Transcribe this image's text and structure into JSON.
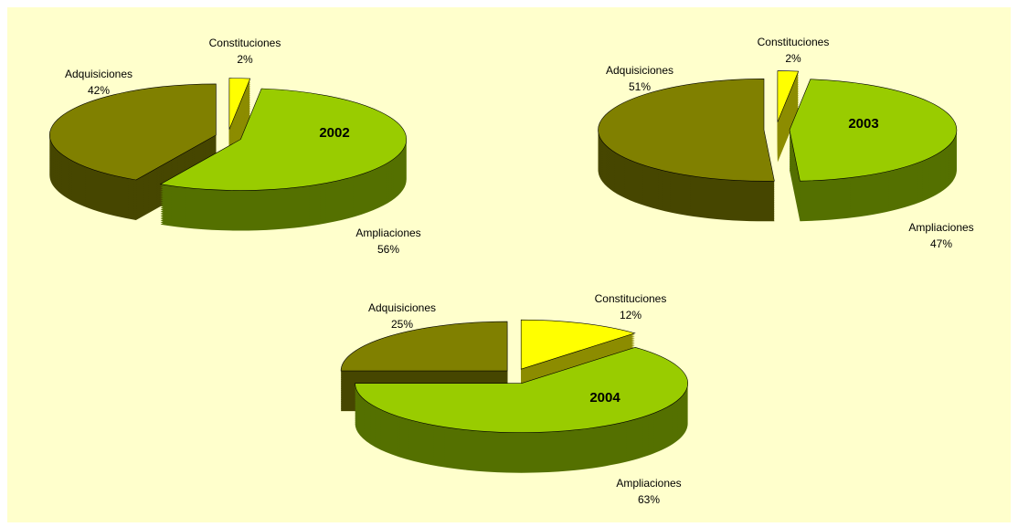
{
  "chart_data": [
    {
      "type": "pie",
      "title": "2002",
      "categories": [
        "Constituciones",
        "Ampliaciones",
        "Adquisiciones"
      ],
      "values": [
        2,
        56,
        42
      ],
      "value_labels": [
        "2%",
        "56%",
        "42%"
      ],
      "colors": [
        "#ffff00",
        "#99cc00",
        "#808000"
      ]
    },
    {
      "type": "pie",
      "title": "2003",
      "categories": [
        "Constituciones",
        "Ampliaciones",
        "Adquisiciones"
      ],
      "values": [
        2,
        47,
        51
      ],
      "value_labels": [
        "2%",
        "47%",
        "51%"
      ],
      "colors": [
        "#ffff00",
        "#99cc00",
        "#808000"
      ]
    },
    {
      "type": "pie",
      "title": "2004",
      "categories": [
        "Constituciones",
        "Ampliaciones",
        "Adquisiciones"
      ],
      "values": [
        12,
        63,
        25
      ],
      "value_labels": [
        "12%",
        "63%",
        "25%"
      ],
      "colors": [
        "#ffff00",
        "#99cc00",
        "#808000"
      ]
    }
  ]
}
